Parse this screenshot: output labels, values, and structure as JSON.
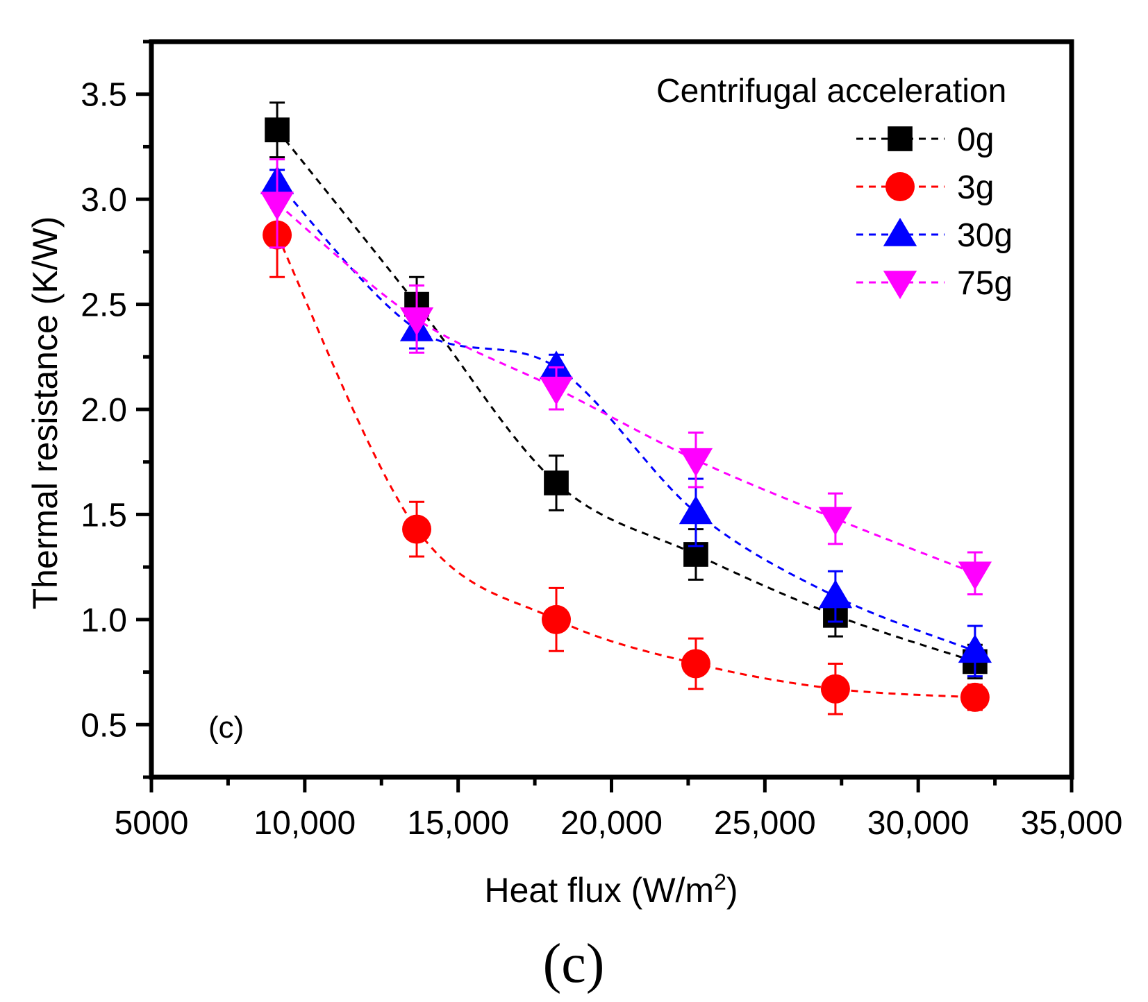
{
  "chart_data": {
    "type": "line",
    "panel_label": "(c)",
    "caption": "(c)",
    "xlabel": "Heat flux (W/m",
    "xlabel_sup": "2",
    "xlabel_close": ")",
    "ylabel": "Thermal resistance (K/W)",
    "xlim": [
      5000,
      35000
    ],
    "ylim": [
      0.25,
      3.75
    ],
    "x_ticks": [
      5000,
      10000,
      15000,
      20000,
      25000,
      30000,
      35000
    ],
    "x_tick_labels": [
      "5000",
      "10,000",
      "15,000",
      "20,000",
      "25,000",
      "30,000",
      "35,000"
    ],
    "y_ticks": [
      0.5,
      1.0,
      1.5,
      2.0,
      2.5,
      3.0,
      3.5
    ],
    "y_tick_labels": [
      "0.5",
      "1.0",
      "1.5",
      "2.0",
      "2.5",
      "3.0",
      "3.5"
    ],
    "legend_title": "Centrifugal acceleration",
    "legend_position": "top-right",
    "grid": false,
    "x": [
      9100,
      13650,
      18200,
      22750,
      27300,
      31850
    ],
    "series": [
      {
        "name": "0g",
        "color": "#000000",
        "marker": "square",
        "values": [
          3.33,
          2.5,
          1.65,
          1.31,
          1.02,
          0.8
        ],
        "errors": [
          0.13,
          0.13,
          0.13,
          0.12,
          0.1,
          0.08
        ]
      },
      {
        "name": "3g",
        "color": "#ff0000",
        "marker": "circle",
        "values": [
          2.83,
          1.43,
          1.0,
          0.79,
          0.67,
          0.63
        ],
        "errors": [
          0.2,
          0.13,
          0.15,
          0.12,
          0.12,
          0.06
        ]
      },
      {
        "name": "30g",
        "color": "#0000ff",
        "marker": "triangle-up",
        "values": [
          3.08,
          2.38,
          2.2,
          1.51,
          1.11,
          0.85
        ],
        "errors": [
          0.06,
          0.09,
          0.06,
          0.16,
          0.12,
          0.12
        ]
      },
      {
        "name": "75g",
        "color": "#ff00ff",
        "marker": "triangle-down",
        "values": [
          2.98,
          2.43,
          2.1,
          1.76,
          1.48,
          1.22
        ],
        "errors": [
          0.21,
          0.16,
          0.1,
          0.13,
          0.12,
          0.1
        ]
      }
    ]
  }
}
